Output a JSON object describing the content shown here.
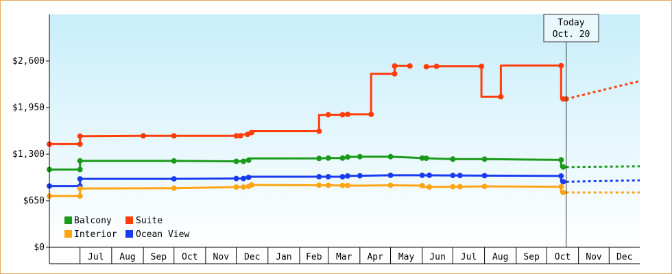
{
  "chart_data": {
    "type": "line",
    "title": "",
    "xlabel": "",
    "ylabel": "",
    "ylim": [
      0,
      3250
    ],
    "yticks": [
      {
        "value": 0,
        "label": "$0"
      },
      {
        "value": 650,
        "label": "$650"
      },
      {
        "value": 1300,
        "label": "$1,300"
      },
      {
        "value": 1950,
        "label": "$1,950"
      },
      {
        "value": 2600,
        "label": "$2,600"
      }
    ],
    "xlim": [
      "2024-06-01",
      "2025-12-31"
    ],
    "xticks": [
      "Jul",
      "Aug",
      "Sep",
      "Oct",
      "Nov",
      "Dec",
      "Jan",
      "Feb",
      "Mar",
      "Apr",
      "May",
      "Jun",
      "Jul",
      "Aug",
      "Sep",
      "Oct",
      "Nov",
      "Dec"
    ],
    "month_starts": [
      "2024-06-01",
      "2024-07-01",
      "2024-08-01",
      "2024-09-01",
      "2024-10-01",
      "2024-11-01",
      "2024-12-01",
      "2025-01-01",
      "2025-02-01",
      "2025-03-01",
      "2025-04-01",
      "2025-05-01",
      "2025-06-01",
      "2025-07-01",
      "2025-08-01",
      "2025-09-01",
      "2025-10-01",
      "2025-11-01",
      "2025-12-01"
    ],
    "today": {
      "line1": "Today",
      "line2": "Oct. 20",
      "date": "2025-10-20"
    },
    "grid": false,
    "legend_position": "bottom-left",
    "series": [
      {
        "name": "Suite",
        "color": "#ff3c0a",
        "points": [
          [
            "2024-06-01",
            1440
          ],
          [
            "2024-07-01",
            1440
          ],
          [
            "2024-07-01",
            1550
          ],
          [
            "2024-09-01",
            1555
          ],
          [
            "2024-10-01",
            1555
          ],
          [
            "2024-12-01",
            1555
          ],
          [
            "2024-12-05",
            1555
          ],
          [
            "2024-12-05",
            1575
          ],
          [
            "2024-12-12",
            1575
          ],
          [
            "2024-12-12",
            1600
          ],
          [
            "2024-12-16",
            1600
          ],
          [
            "2024-12-16",
            1620
          ],
          [
            "2025-02-20",
            1620
          ],
          [
            "2025-02-20",
            1845
          ],
          [
            "2025-03-01",
            1850
          ],
          [
            "2025-03-15",
            1850
          ],
          [
            "2025-03-20",
            1855
          ],
          [
            "2025-04-12",
            1855
          ],
          [
            "2025-04-12",
            2420
          ],
          [
            "2025-05-05",
            2420
          ],
          [
            "2025-05-05",
            2530
          ],
          [
            "2025-05-20",
            2530
          ],
          [
            null,
            null
          ],
          [
            "2025-06-05",
            2520
          ],
          [
            "2025-06-15",
            2525
          ],
          [
            "2025-07-29",
            2525
          ],
          [
            "2025-07-29",
            2100
          ],
          [
            "2025-08-17",
            2100
          ],
          [
            "2025-08-17",
            2535
          ],
          [
            "2025-10-15",
            2535
          ],
          [
            "2025-10-15",
            2070
          ],
          [
            "2025-10-20",
            2070
          ]
        ],
        "projection": [
          [
            "2025-10-20",
            2070
          ],
          [
            "2025-12-31",
            2320
          ]
        ]
      },
      {
        "name": "Balcony",
        "color": "#1a9a1a",
        "points": [
          [
            "2024-06-01",
            1085
          ],
          [
            "2024-07-01",
            1085
          ],
          [
            "2024-07-01",
            1205
          ],
          [
            "2024-10-01",
            1205
          ],
          [
            "2024-12-01",
            1200
          ],
          [
            "2024-12-08",
            1200
          ],
          [
            "2024-12-08",
            1215
          ],
          [
            "2024-12-13",
            1215
          ],
          [
            "2024-12-13",
            1240
          ],
          [
            "2025-02-20",
            1240
          ],
          [
            "2025-03-01",
            1245
          ],
          [
            "2025-03-15",
            1245
          ],
          [
            "2025-03-20",
            1260
          ],
          [
            "2025-04-01",
            1265
          ],
          [
            "2025-05-01",
            1265
          ],
          [
            "2025-06-01",
            1245
          ],
          [
            "2025-07-01",
            1230
          ],
          [
            "2025-08-01",
            1230
          ],
          [
            "2025-10-15",
            1220
          ],
          [
            "2025-10-15",
            1120
          ],
          [
            "2025-10-20",
            1120
          ]
        ],
        "projection": [
          [
            "2025-10-20",
            1120
          ],
          [
            "2025-12-31",
            1130
          ]
        ]
      },
      {
        "name": "Ocean View",
        "color": "#1a3cf0",
        "points": [
          [
            "2024-06-01",
            855
          ],
          [
            "2024-07-01",
            855
          ],
          [
            "2024-07-01",
            955
          ],
          [
            "2024-10-01",
            955
          ],
          [
            "2024-12-01",
            960
          ],
          [
            "2024-12-08",
            960
          ],
          [
            "2024-12-08",
            975
          ],
          [
            "2024-12-13",
            975
          ],
          [
            "2024-12-13",
            985
          ],
          [
            "2025-03-01",
            985
          ],
          [
            "2025-03-15",
            985
          ],
          [
            "2025-03-20",
            995
          ],
          [
            "2025-05-01",
            1005
          ],
          [
            "2025-06-01",
            1005
          ],
          [
            "2025-08-01",
            1000
          ],
          [
            "2025-10-15",
            995
          ],
          [
            "2025-10-15",
            915
          ],
          [
            "2025-10-20",
            915
          ]
        ],
        "projection": [
          [
            "2025-10-20",
            915
          ],
          [
            "2025-12-31",
            935
          ]
        ]
      },
      {
        "name": "Interior",
        "color": "#ffa514",
        "points": [
          [
            "2024-06-01",
            715
          ],
          [
            "2024-07-01",
            715
          ],
          [
            "2024-07-01",
            820
          ],
          [
            "2024-10-01",
            825
          ],
          [
            "2024-12-01",
            840
          ],
          [
            "2024-12-08",
            840
          ],
          [
            "2024-12-08",
            850
          ],
          [
            "2024-12-13",
            850
          ],
          [
            "2024-12-13",
            870
          ],
          [
            "2025-03-01",
            865
          ],
          [
            "2025-04-01",
            860
          ],
          [
            "2025-05-01",
            865
          ],
          [
            "2025-06-01",
            860
          ],
          [
            "2025-06-01",
            840
          ],
          [
            "2025-07-01",
            845
          ],
          [
            "2025-08-01",
            850
          ],
          [
            "2025-10-15",
            845
          ],
          [
            "2025-10-15",
            765
          ],
          [
            "2025-10-20",
            765
          ]
        ],
        "projection": [
          [
            "2025-10-20",
            765
          ],
          [
            "2025-12-31",
            765
          ]
        ]
      }
    ],
    "markers": {
      "Suite": [
        "2024-06-01",
        "2024-07-01",
        "2024-07-01b",
        "2024-09-01",
        "2024-10-01",
        "2024-12-01",
        "2024-12-05",
        "2024-12-12",
        "2024-12-16",
        "2025-02-20",
        "2025-03-01",
        "2025-03-15",
        "2025-03-20",
        "2025-04-12",
        "2025-05-05",
        "2025-05-05b",
        "2025-05-20",
        "2025-06-05",
        "2025-06-15",
        "2025-07-29",
        "2025-08-17",
        "2025-10-15",
        "2025-10-17",
        "2025-10-20"
      ],
      "Balcony": [
        "2024-06-01",
        "2024-07-01",
        "2024-07-01b",
        "2024-10-01",
        "2024-12-01",
        "2024-12-08",
        "2024-12-13",
        "2025-02-20",
        "2025-03-01",
        "2025-03-15",
        "2025-03-20",
        "2025-04-01",
        "2025-05-01",
        "2025-06-01",
        "2025-06-05",
        "2025-07-01",
        "2025-07-01b",
        "2025-08-01",
        "2025-10-15",
        "2025-10-17"
      ],
      "Ocean View": [
        "2024-06-01",
        "2024-07-01",
        "2024-07-01b",
        "2024-10-01",
        "2024-12-01",
        "2024-12-08",
        "2024-12-13",
        "2025-02-20",
        "2025-03-01",
        "2025-03-15",
        "2025-03-20",
        "2025-04-01",
        "2025-05-01",
        "2025-06-01",
        "2025-06-08",
        "2025-07-01",
        "2025-07-08",
        "2025-08-01",
        "2025-10-15",
        "2025-10-17"
      ],
      "Interior": [
        "2024-06-01",
        "2024-07-01",
        "2024-07-01b",
        "2024-10-01",
        "2024-12-01",
        "2024-12-08",
        "2024-12-13",
        "2024-12-16",
        "2025-02-20",
        "2025-03-01",
        "2025-03-15",
        "2025-03-20",
        "2025-05-01",
        "2025-06-01",
        "2025-06-08",
        "2025-07-01",
        "2025-07-08",
        "2025-08-01",
        "2025-10-15",
        "2025-10-17"
      ]
    },
    "legend": [
      {
        "name": "Balcony",
        "color": "#1a9a1a"
      },
      {
        "name": "Suite",
        "color": "#ff3c0a"
      },
      {
        "name": "Interior",
        "color": "#ffa514"
      },
      {
        "name": "Ocean View",
        "color": "#1a3cf0"
      }
    ]
  }
}
